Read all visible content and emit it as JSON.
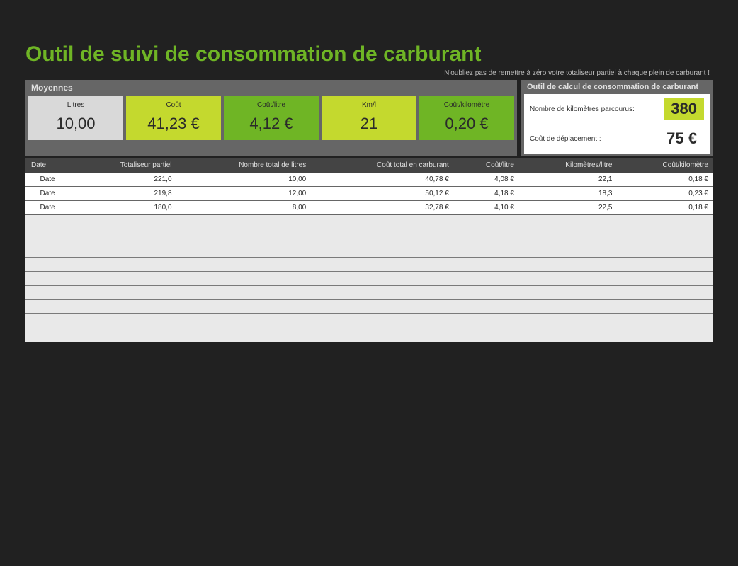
{
  "title": "Outil de suivi de consommation de carburant",
  "subtitle": "N'oubliez pas de remettre à zéro votre totaliseur partiel à chaque plein de carburant !",
  "averages": {
    "header": "Moyennes",
    "cards": [
      {
        "label": "Litres",
        "value": "10,00",
        "style": "c-gray"
      },
      {
        "label": "Coût",
        "value": "41,23 €",
        "style": "c-lime"
      },
      {
        "label": "Coût/litre",
        "value": "4,12 €",
        "style": "c-green"
      },
      {
        "label": "Km/l",
        "value": "21",
        "style": "c-lime"
      },
      {
        "label": "Coût/kilomètre",
        "value": "0,20 €",
        "style": "c-green"
      }
    ]
  },
  "calculator": {
    "header": "Outil de calcul de consommation de carburant",
    "rows": [
      {
        "label": "Nombre de kilomètres parcourus:",
        "value": "380",
        "hl": true
      },
      {
        "label": "Coût de déplacement :",
        "value": "75 €",
        "hl": false
      }
    ]
  },
  "table": {
    "columns": [
      "Date",
      "Totaliseur partiel",
      "Nombre total de litres",
      "Coût total en carburant",
      "Coût/litre",
      "Kilomètres/litre",
      "Coût/kilomètre"
    ],
    "rows": [
      [
        "Date",
        "221,0",
        "10,00",
        "40,78 €",
        "4,08 €",
        "22,1",
        "0,18 €"
      ],
      [
        "Date",
        "219,8",
        "12,00",
        "50,12 €",
        "4,18 €",
        "18,3",
        "0,23 €"
      ],
      [
        "Date",
        "180,0",
        "8,00",
        "32,78 €",
        "4,10 €",
        "22,5",
        "0,18 €"
      ]
    ],
    "empty_rows": 9
  },
  "colors": {
    "bg": "#212121",
    "title": "#6fb525",
    "lime": "#c4d92e",
    "green": "#6fb525",
    "gray_card": "#d9d9d9",
    "panel": "#666666",
    "th": "#444444",
    "empty": "#e9e9e9"
  }
}
